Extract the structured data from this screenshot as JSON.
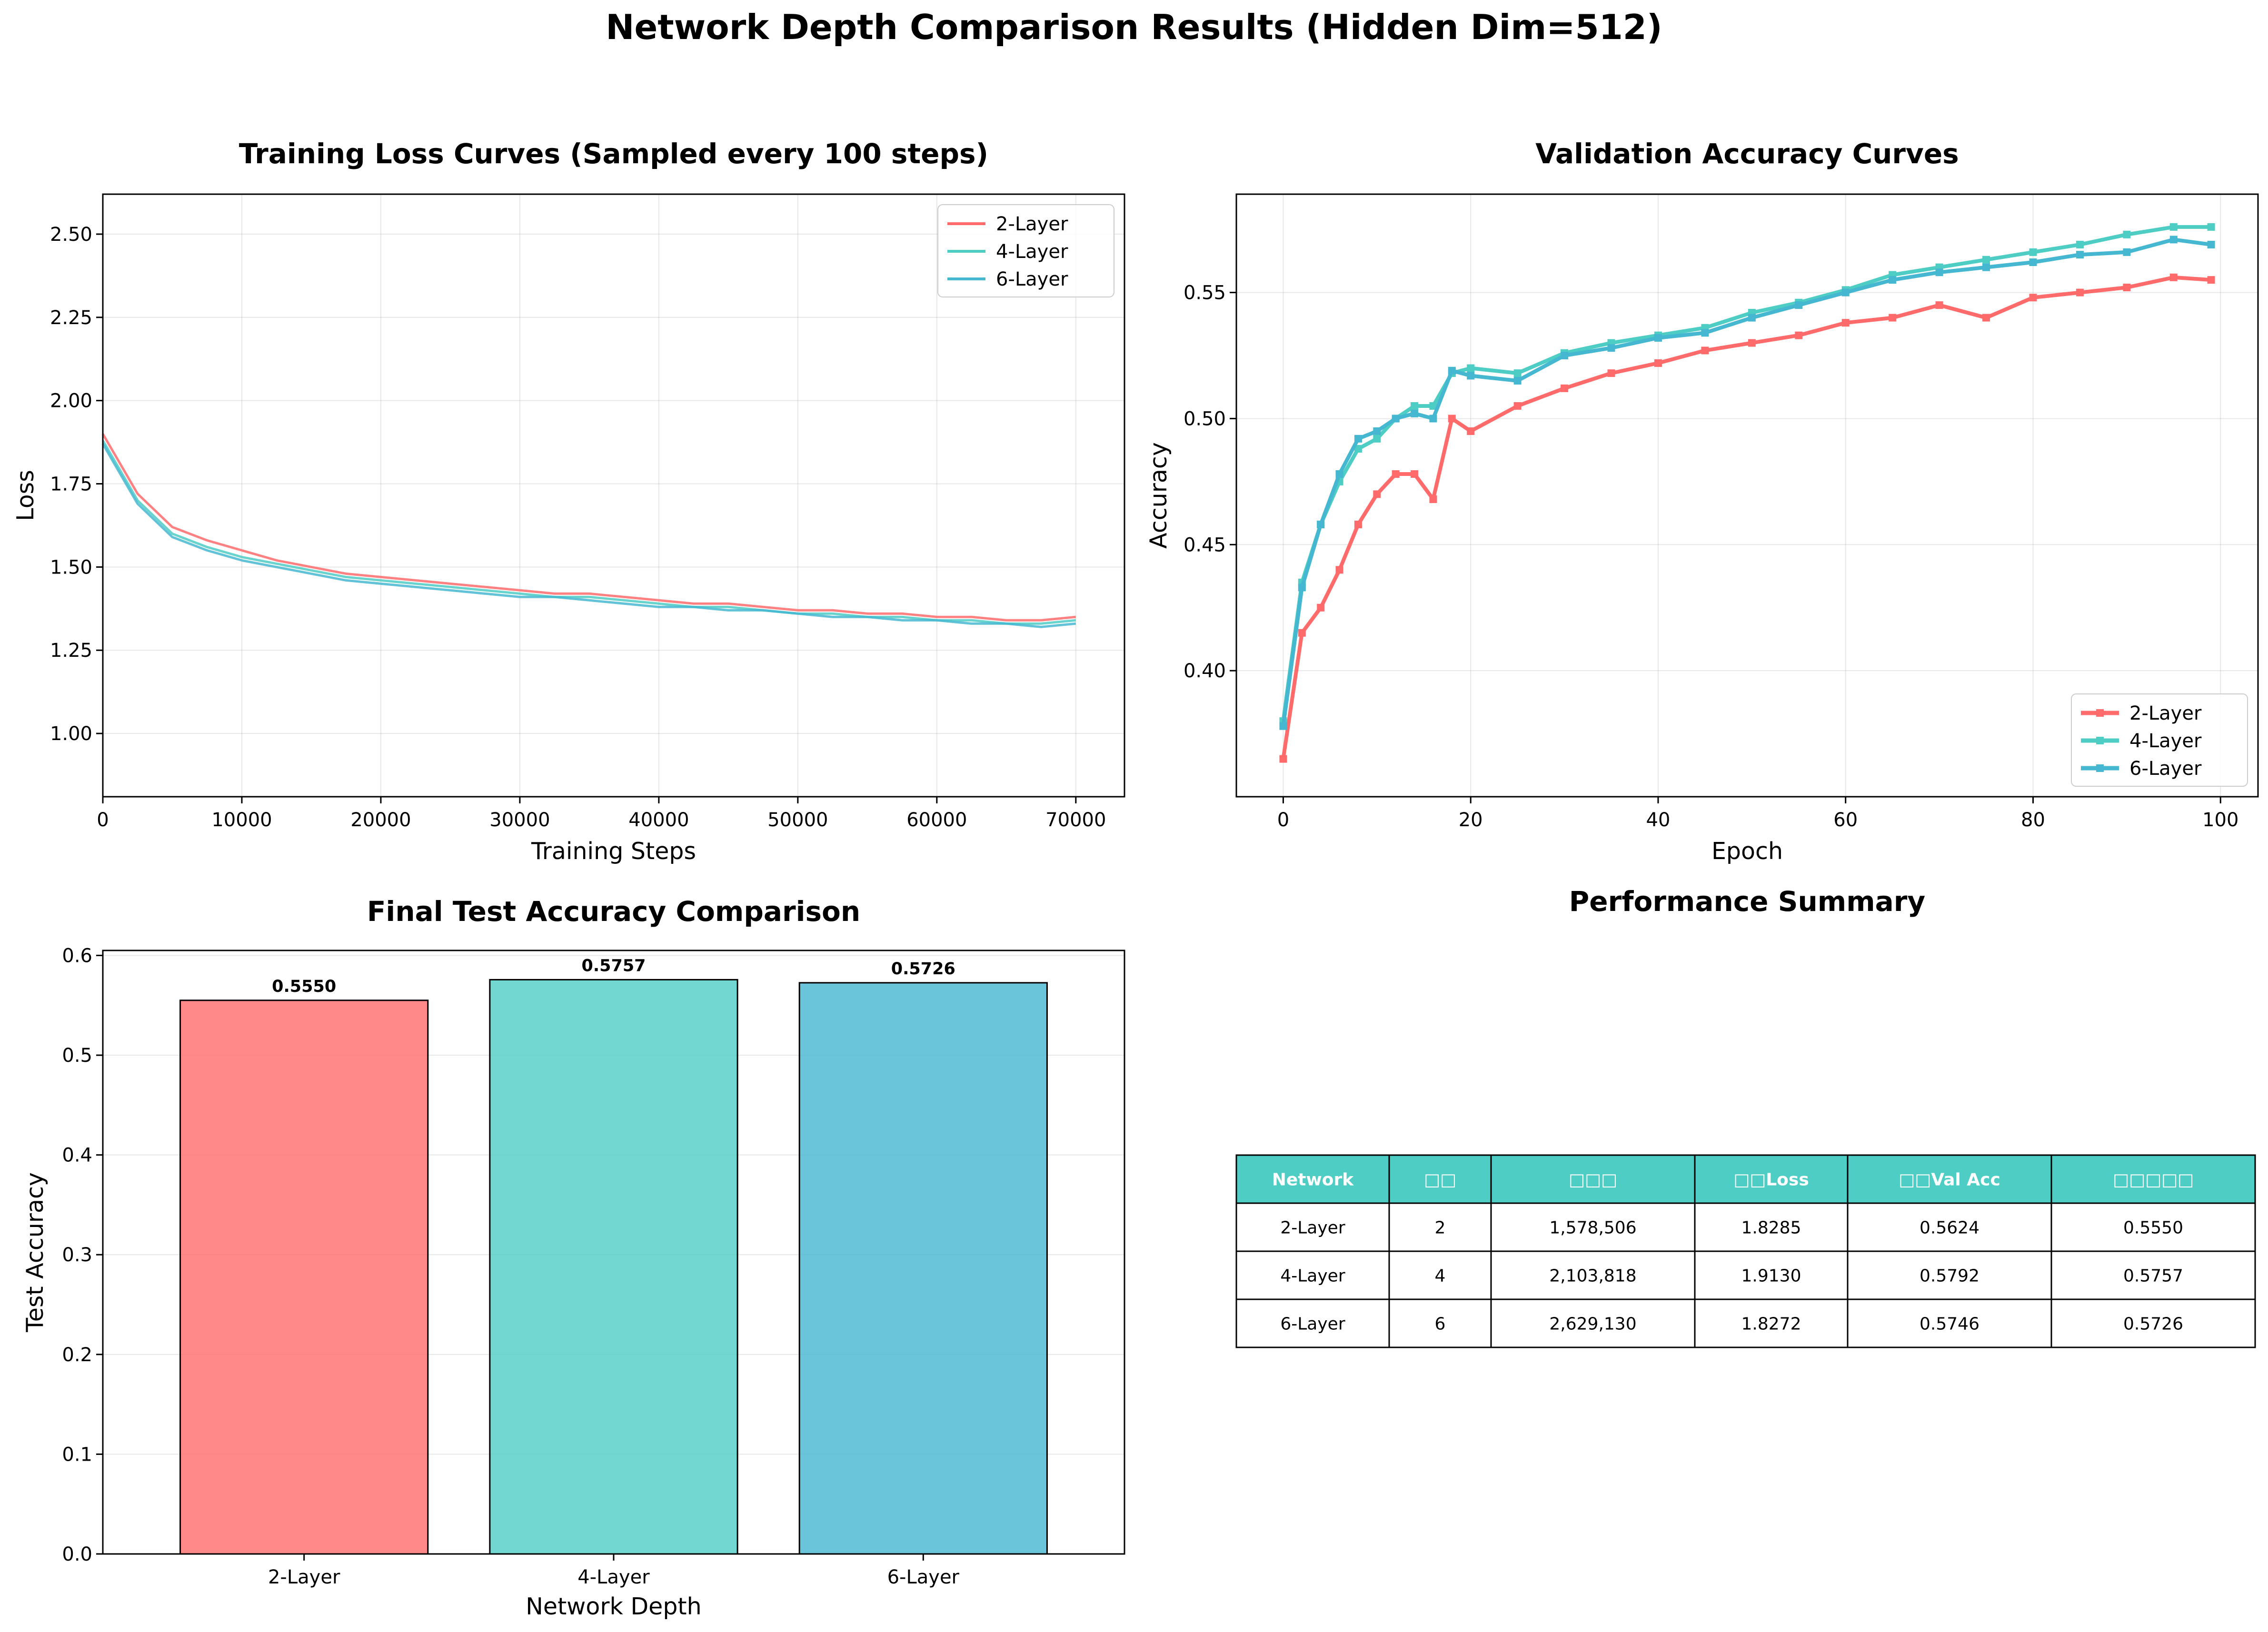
{
  "suptitle": "Network Depth Comparison Results (Hidden Dim=512)",
  "colors": {
    "layer2": "#ff6b6b",
    "layer4": "#4ecdc4",
    "layer6": "#45b7d1",
    "table_header": "#4ecdc4"
  },
  "chart_data": [
    {
      "type": "line",
      "title": "Training Loss Curves (Sampled every 100 steps)",
      "xlabel": "Training Steps",
      "ylabel": "Loss",
      "xlim": [
        0,
        73500
      ],
      "ylim": [
        0.81,
        2.62
      ],
      "xticks": [
        0,
        10000,
        20000,
        30000,
        40000,
        50000,
        60000,
        70000
      ],
      "yticks": [
        1.0,
        1.25,
        1.5,
        1.75,
        2.0,
        2.25,
        2.5
      ],
      "grid": true,
      "legend": "top-right",
      "series": [
        {
          "name": "2-Layer",
          "color": "#ff6b6b",
          "x": [
            0,
            2500,
            5000,
            7500,
            10000,
            12500,
            15000,
            17500,
            20000,
            22500,
            25000,
            27500,
            30000,
            32500,
            35000,
            37500,
            40000,
            42500,
            45000,
            47500,
            50000,
            52500,
            55000,
            57500,
            60000,
            62500,
            65000,
            67500,
            70000
          ],
          "values": [
            1.9,
            1.72,
            1.62,
            1.58,
            1.55,
            1.52,
            1.5,
            1.48,
            1.47,
            1.46,
            1.45,
            1.44,
            1.43,
            1.42,
            1.42,
            1.41,
            1.4,
            1.39,
            1.39,
            1.38,
            1.37,
            1.37,
            1.36,
            1.36,
            1.35,
            1.35,
            1.34,
            1.34,
            1.35
          ]
        },
        {
          "name": "4-Layer",
          "color": "#4ecdc4",
          "x": [
            0,
            2500,
            5000,
            7500,
            10000,
            12500,
            15000,
            17500,
            20000,
            22500,
            25000,
            27500,
            30000,
            32500,
            35000,
            37500,
            40000,
            42500,
            45000,
            47500,
            50000,
            52500,
            55000,
            57500,
            60000,
            62500,
            65000,
            67500,
            70000
          ],
          "values": [
            1.88,
            1.7,
            1.6,
            1.56,
            1.53,
            1.51,
            1.49,
            1.47,
            1.46,
            1.45,
            1.44,
            1.43,
            1.42,
            1.41,
            1.41,
            1.4,
            1.39,
            1.38,
            1.38,
            1.37,
            1.36,
            1.36,
            1.35,
            1.35,
            1.34,
            1.34,
            1.33,
            1.33,
            1.34
          ]
        },
        {
          "name": "6-Layer",
          "color": "#45b7d1",
          "x": [
            0,
            2500,
            5000,
            7500,
            10000,
            12500,
            15000,
            17500,
            20000,
            22500,
            25000,
            27500,
            30000,
            32500,
            35000,
            37500,
            40000,
            42500,
            45000,
            47500,
            50000,
            52500,
            55000,
            57500,
            60000,
            62500,
            65000,
            67500,
            70000
          ],
          "values": [
            1.87,
            1.69,
            1.59,
            1.55,
            1.52,
            1.5,
            1.48,
            1.46,
            1.45,
            1.44,
            1.43,
            1.42,
            1.41,
            1.41,
            1.4,
            1.39,
            1.38,
            1.38,
            1.37,
            1.37,
            1.36,
            1.35,
            1.35,
            1.34,
            1.34,
            1.33,
            1.33,
            1.32,
            1.33
          ]
        }
      ]
    },
    {
      "type": "line",
      "title": "Validation Accuracy Curves",
      "xlabel": "Epoch",
      "ylabel": "Accuracy",
      "xlim": [
        -5,
        104
      ],
      "ylim": [
        0.35,
        0.589
      ],
      "xticks": [
        0,
        20,
        40,
        60,
        80,
        100
      ],
      "yticks": [
        0.4,
        0.45,
        0.5,
        0.55
      ],
      "grid": true,
      "legend": "bottom-right",
      "series": [
        {
          "name": "2-Layer",
          "color": "#ff6b6b",
          "x": [
            0,
            2,
            4,
            6,
            8,
            10,
            12,
            14,
            16,
            18,
            20,
            25,
            30,
            35,
            40,
            45,
            50,
            55,
            60,
            65,
            70,
            75,
            80,
            85,
            90,
            95,
            99
          ],
          "values": [
            0.365,
            0.415,
            0.425,
            0.44,
            0.458,
            0.47,
            0.478,
            0.478,
            0.468,
            0.5,
            0.495,
            0.505,
            0.512,
            0.518,
            0.522,
            0.527,
            0.53,
            0.533,
            0.538,
            0.54,
            0.545,
            0.54,
            0.548,
            0.55,
            0.552,
            0.556,
            0.555
          ]
        },
        {
          "name": "4-Layer",
          "color": "#4ecdc4",
          "x": [
            0,
            2,
            4,
            6,
            8,
            10,
            12,
            14,
            16,
            18,
            20,
            25,
            30,
            35,
            40,
            45,
            50,
            55,
            60,
            65,
            70,
            75,
            80,
            85,
            90,
            95,
            99
          ],
          "values": [
            0.38,
            0.435,
            0.458,
            0.475,
            0.488,
            0.492,
            0.5,
            0.505,
            0.505,
            0.518,
            0.52,
            0.518,
            0.526,
            0.53,
            0.533,
            0.536,
            0.542,
            0.546,
            0.551,
            0.557,
            0.56,
            0.563,
            0.566,
            0.569,
            0.573,
            0.576,
            0.576
          ]
        },
        {
          "name": "6-Layer",
          "color": "#45b7d1",
          "x": [
            0,
            2,
            4,
            6,
            8,
            10,
            12,
            14,
            16,
            18,
            20,
            25,
            30,
            35,
            40,
            45,
            50,
            55,
            60,
            65,
            70,
            75,
            80,
            85,
            90,
            95,
            99
          ],
          "values": [
            0.378,
            0.433,
            0.458,
            0.478,
            0.492,
            0.495,
            0.5,
            0.502,
            0.5,
            0.519,
            0.517,
            0.515,
            0.525,
            0.528,
            0.532,
            0.534,
            0.54,
            0.545,
            0.55,
            0.555,
            0.558,
            0.56,
            0.562,
            0.565,
            0.566,
            0.571,
            0.569
          ]
        }
      ]
    },
    {
      "type": "bar",
      "title": "Final Test Accuracy Comparison",
      "xlabel": "Network Depth",
      "ylabel": "Test Accuracy",
      "categories": [
        "2-Layer",
        "4-Layer",
        "6-Layer"
      ],
      "values": [
        0.555,
        0.5757,
        0.5726
      ],
      "data_labels": [
        "0.5550",
        "0.5757",
        "0.5726"
      ],
      "colors": [
        "#ff6b6b",
        "#4ecdc4",
        "#45b7d1"
      ],
      "ylim": [
        0,
        0.605
      ],
      "yticks": [
        0.0,
        0.1,
        0.2,
        0.3,
        0.4,
        0.5,
        0.6
      ],
      "grid": true
    },
    {
      "type": "table",
      "title": "Performance Summary",
      "columns": [
        "Network",
        "□□",
        "□□□",
        "□□Loss",
        "□□Val Acc",
        "□□□□□"
      ],
      "rows": [
        [
          "2-Layer",
          "2",
          "1,578,506",
          "1.8285",
          "0.5624",
          "0.5550"
        ],
        [
          "4-Layer",
          "4",
          "2,103,818",
          "1.9130",
          "0.5792",
          "0.5757"
        ],
        [
          "6-Layer",
          "6",
          "2,629,130",
          "1.8272",
          "0.5746",
          "0.5726"
        ]
      ]
    }
  ]
}
